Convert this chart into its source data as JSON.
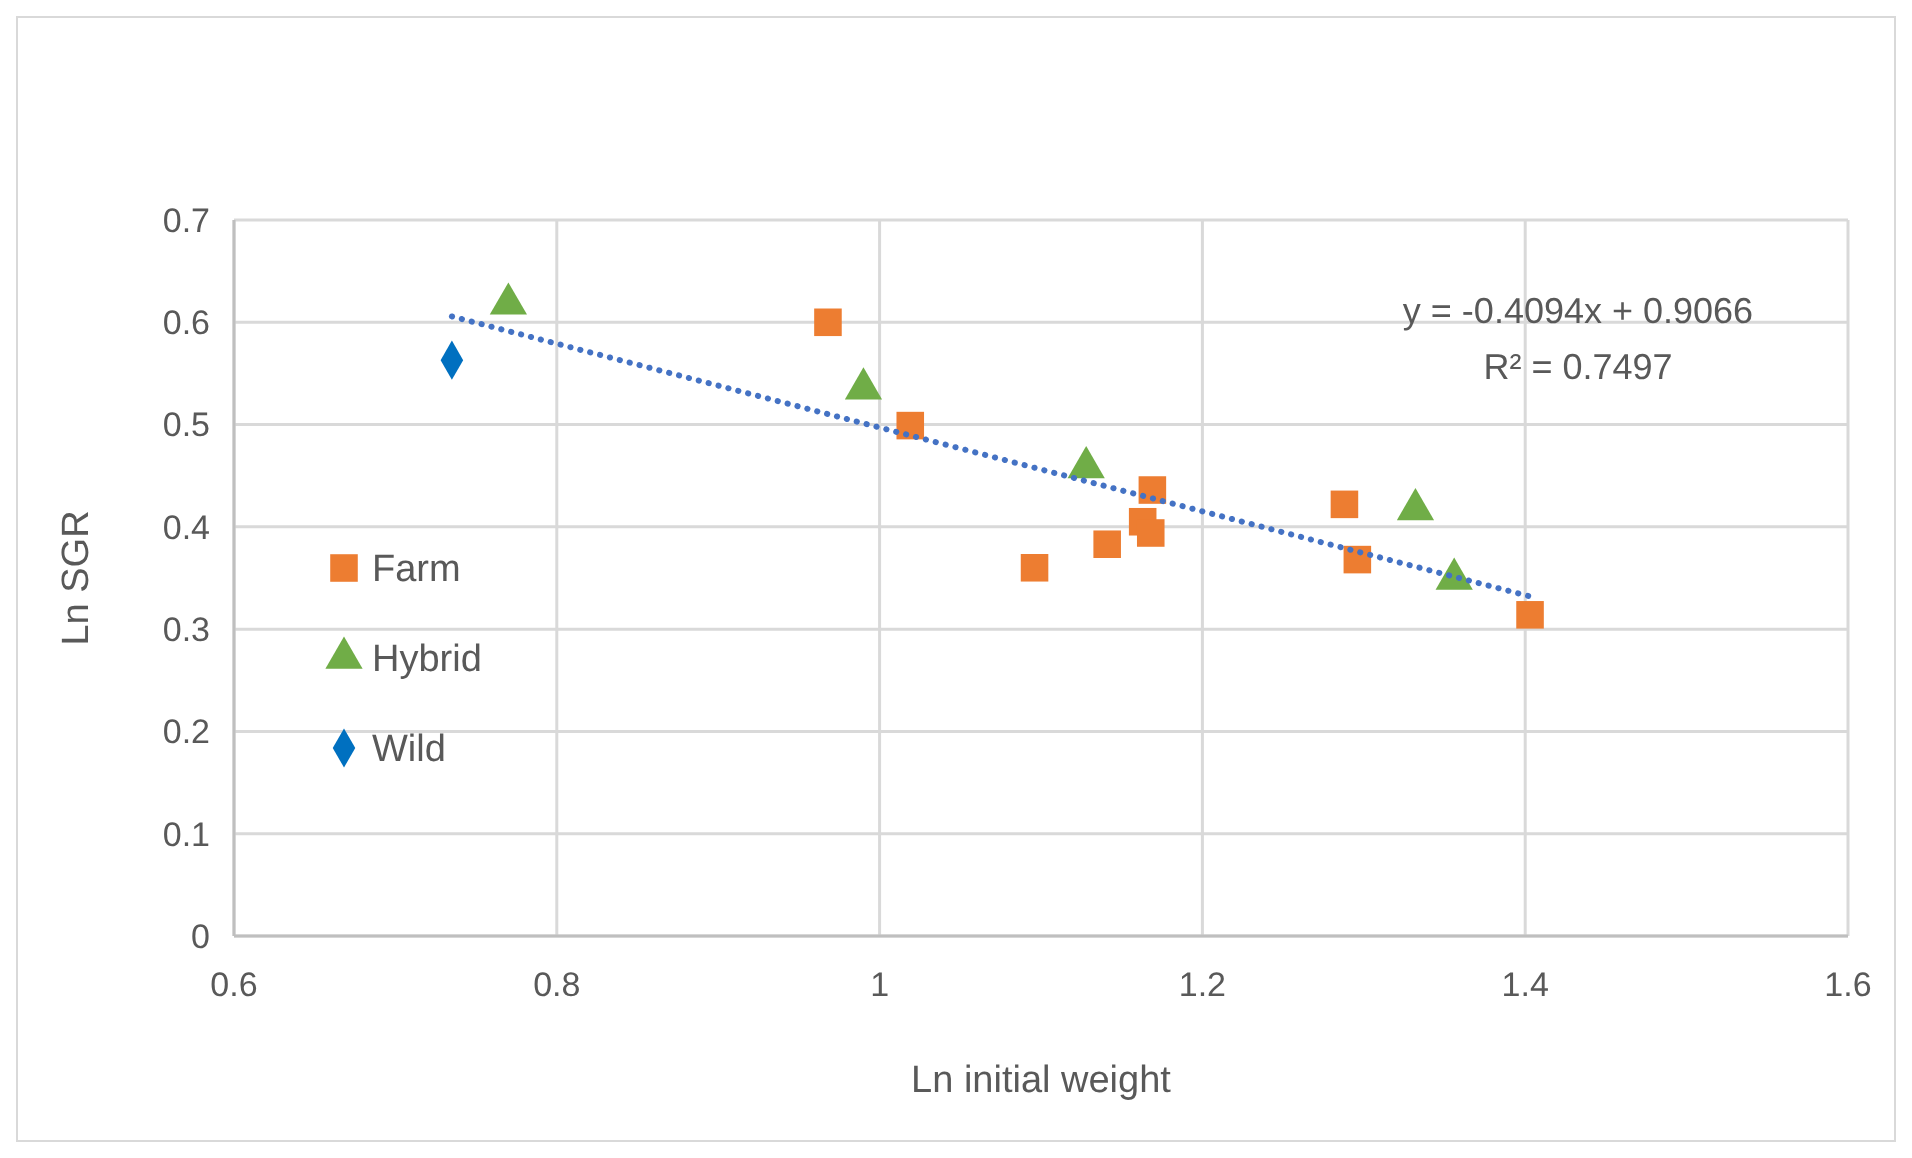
{
  "chart_data": {
    "type": "scatter",
    "xlabel": "Ln initial weight",
    "ylabel": "Ln SGR",
    "xlim": [
      0.6,
      1.6
    ],
    "xticks": [
      0.6,
      0.8,
      1,
      1.2,
      1.4,
      1.6
    ],
    "ylim": [
      0,
      0.7
    ],
    "yticks": [
      0,
      0.1,
      0.2,
      0.3,
      0.4,
      0.5,
      0.6,
      0.7
    ],
    "grid": true,
    "legend": "left",
    "annotations": [
      "y = -0.4094x + 0.9066",
      "R² = 0.7497"
    ],
    "series": [
      {
        "name": "Farm",
        "color": "#ed7d31",
        "marker": "square",
        "x": [
          0.968,
          1.019,
          1.096,
          1.141,
          1.169,
          1.163,
          1.168,
          1.288,
          1.296,
          1.403
        ],
        "values": [
          0.6,
          0.499,
          0.36,
          0.383,
          0.436,
          0.405,
          0.394,
          0.422,
          0.368,
          0.314
        ]
      },
      {
        "name": "Hybrid",
        "color": "#70ad47",
        "marker": "triangle",
        "x": [
          0.77,
          0.99,
          1.128,
          1.332,
          1.356
        ],
        "values": [
          0.618,
          0.535,
          0.458,
          0.417,
          0.349
        ]
      },
      {
        "name": "Wild",
        "color": "#0070c0",
        "marker": "diamond",
        "x": [
          0.735
        ],
        "values": [
          0.563
        ]
      },
      {
        "type": "line",
        "color": "#4472c4",
        "line_style": "dotted",
        "marker": "none",
        "x": [
          0.735,
          1.403
        ],
        "values": [
          0.6057,
          0.332
        ]
      }
    ]
  }
}
